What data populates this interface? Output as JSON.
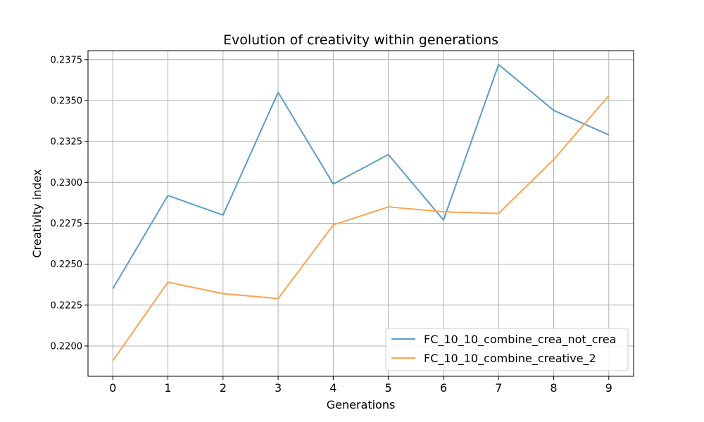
{
  "chart_data": {
    "type": "line",
    "title": "Evolution of creativity within generations",
    "xlabel": "Generations",
    "ylabel": "Creativity index",
    "x": [
      0,
      1,
      2,
      3,
      4,
      5,
      6,
      7,
      8,
      9
    ],
    "xlim": [
      -0.45,
      9.45
    ],
    "ylim": [
      0.21815,
      0.23805
    ],
    "xticks": [
      "0",
      "1",
      "2",
      "3",
      "4",
      "5",
      "6",
      "7",
      "8",
      "9"
    ],
    "yticks": [
      0.22,
      0.2225,
      0.225,
      0.2275,
      0.23,
      0.2325,
      0.235,
      0.2375
    ],
    "ytick_labels": [
      "0.2200",
      "0.2225",
      "0.2250",
      "0.2275",
      "0.2300",
      "0.2325",
      "0.2350",
      "0.2375"
    ],
    "grid": true,
    "legend_position": "bottom-right",
    "series": [
      {
        "name": "FC_10_10_combine_crea_not_crea",
        "color": "#5b9ec9",
        "values": [
          0.2235,
          0.2292,
          0.228,
          0.2355,
          0.2299,
          0.2317,
          0.2277,
          0.2372,
          0.2344,
          0.2329
        ]
      },
      {
        "name": "FC_10_10_combine_creative_2",
        "color": "#ffa24d",
        "values": [
          0.2191,
          0.2239,
          0.2232,
          0.2229,
          0.2274,
          0.2285,
          0.2282,
          0.2281,
          0.2314,
          0.2353
        ]
      }
    ]
  }
}
